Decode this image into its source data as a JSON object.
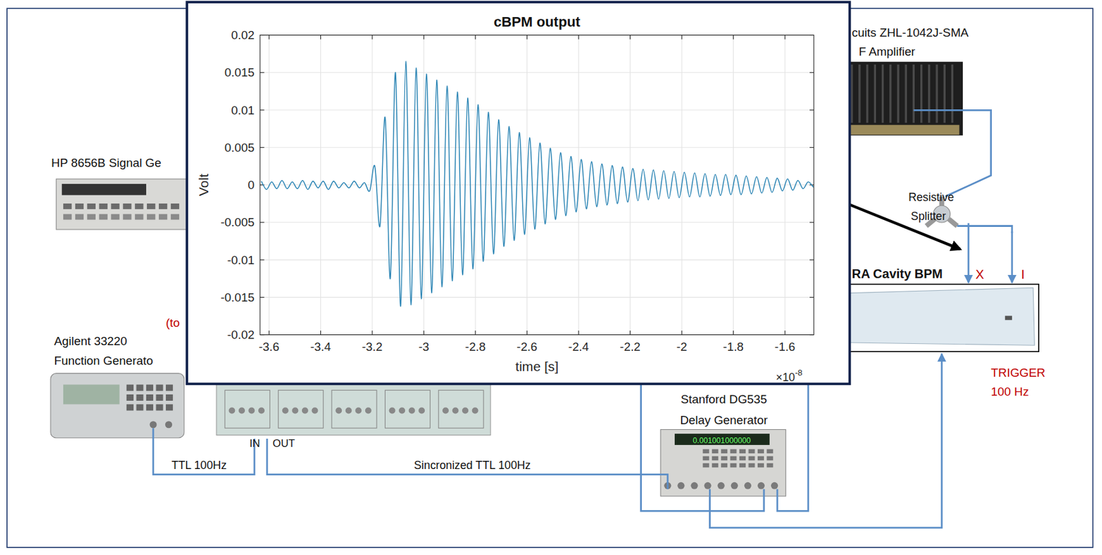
{
  "diagram": {
    "hp_generator": "HP 8656B Signal Ge",
    "agilent": [
      "Agilent 33220",
      "Function Generato"
    ],
    "to_note": "(to",
    "amplifier": [
      "cuits ZHL-1042J-SMA",
      "F Amplifier"
    ],
    "splitter": [
      "Resistive",
      "Splitter"
    ],
    "bpm": "RA Cavity BPM",
    "port_x": "X",
    "port_i": "I",
    "trigger": [
      "TRIGGER",
      "100 Hz"
    ],
    "delay": [
      "Stanford DG535",
      "Delay Generator"
    ],
    "delay_display": "0.001001000000",
    "in": "IN",
    "out": "OUT",
    "ttl": "TTL 100Hz",
    "sync_ttl": "Sincronized TTL 100Hz"
  },
  "chart_data": {
    "type": "line",
    "title": "cBPM output",
    "x_label": "time [s]",
    "y_label": "Volt",
    "x_multiplier": {
      "base": "×10",
      "exponent": "-8"
    },
    "color": "#2e86b5",
    "grid": true,
    "xlim": [
      -3.635,
      -1.488
    ],
    "ylim": [
      -0.02,
      0.02
    ],
    "xticks": [
      -3.6,
      -3.4,
      -3.2,
      -3,
      -2.8,
      -2.6,
      -2.4,
      -2.2,
      -2,
      -1.8,
      -1.6
    ],
    "yticks": [
      -0.02,
      -0.015,
      -0.01,
      -0.005,
      0,
      0.005,
      0.01,
      0.015,
      0.02
    ],
    "x": [
      -3.63,
      -3.61,
      -3.59,
      -3.57,
      -3.55,
      -3.53,
      -3.51,
      -3.49,
      -3.47,
      -3.45,
      -3.43,
      -3.41,
      -3.39,
      -3.37,
      -3.35,
      -3.33,
      -3.31,
      -3.29,
      -3.27,
      -3.25,
      -3.23,
      -3.21,
      -3.19,
      -3.17,
      -3.15,
      -3.13,
      -3.11,
      -3.09,
      -3.07,
      -3.05,
      -3.03,
      -3.01,
      -2.99,
      -2.97,
      -2.95,
      -2.93,
      -2.91,
      -2.89,
      -2.87,
      -2.85,
      -2.83,
      -2.81,
      -2.79,
      -2.77,
      -2.75,
      -2.73,
      -2.71,
      -2.69,
      -2.67,
      -2.65,
      -2.63,
      -2.61,
      -2.59,
      -2.57,
      -2.55,
      -2.53,
      -2.51,
      -2.49,
      -2.47,
      -2.45,
      -2.43,
      -2.41,
      -2.39,
      -2.37,
      -2.35,
      -2.33,
      -2.31,
      -2.29,
      -2.27,
      -2.25,
      -2.23,
      -2.21,
      -2.19,
      -2.17,
      -2.15,
      -2.13,
      -2.11,
      -2.09,
      -2.07,
      -2.05,
      -2.03,
      -2.01,
      -1.99,
      -1.97,
      -1.95,
      -1.93,
      -1.91,
      -1.89,
      -1.87,
      -1.85,
      -1.83,
      -1.81,
      -1.79,
      -1.77,
      -1.75,
      -1.73,
      -1.71,
      -1.69,
      -1.67,
      -1.65,
      -1.63,
      -1.61,
      -1.59,
      -1.57,
      -1.55,
      -1.53,
      -1.51,
      -1.49
    ],
    "values": [
      0.0005,
      -0.0006,
      0.0004,
      -0.0005,
      0.0006,
      -0.0005,
      0.0004,
      -0.0005,
      0.0006,
      -0.0006,
      0.0005,
      -0.0004,
      0.0005,
      -0.0006,
      0.0005,
      -0.0004,
      0.0003,
      -0.0004,
      0.0005,
      -0.0004,
      0.0003,
      -0.0008,
      0.0025,
      -0.0055,
      0.009,
      -0.0125,
      0.015,
      -0.0162,
      0.0165,
      -0.016,
      0.0156,
      -0.0152,
      0.0148,
      -0.0144,
      0.014,
      -0.0136,
      0.0132,
      -0.0128,
      0.0124,
      -0.012,
      0.0116,
      -0.0112,
      0.0107,
      -0.0102,
      0.0097,
      -0.0092,
      0.0087,
      -0.0082,
      0.0078,
      -0.0074,
      0.007,
      -0.0066,
      0.0063,
      -0.0059,
      0.0056,
      -0.0052,
      0.0049,
      -0.0046,
      0.0043,
      -0.0041,
      0.0038,
      -0.0036,
      0.0034,
      -0.0032,
      0.0031,
      -0.0029,
      0.0028,
      -0.0027,
      0.0026,
      -0.0025,
      0.0024,
      -0.0023,
      0.0022,
      -0.0021,
      0.0021,
      -0.002,
      0.002,
      -0.0019,
      0.0019,
      -0.0018,
      0.0018,
      -0.0017,
      0.0017,
      -0.0016,
      0.0016,
      -0.0016,
      0.0015,
      -0.0015,
      0.0014,
      -0.0014,
      0.0014,
      -0.0013,
      0.0013,
      -0.0013,
      0.0012,
      -0.0012,
      0.0011,
      -0.0011,
      0.001,
      -0.001,
      0.0009,
      -0.0008,
      0.0008,
      -0.0007,
      0.0006,
      -0.0005,
      0.0004,
      -0.0003
    ]
  }
}
